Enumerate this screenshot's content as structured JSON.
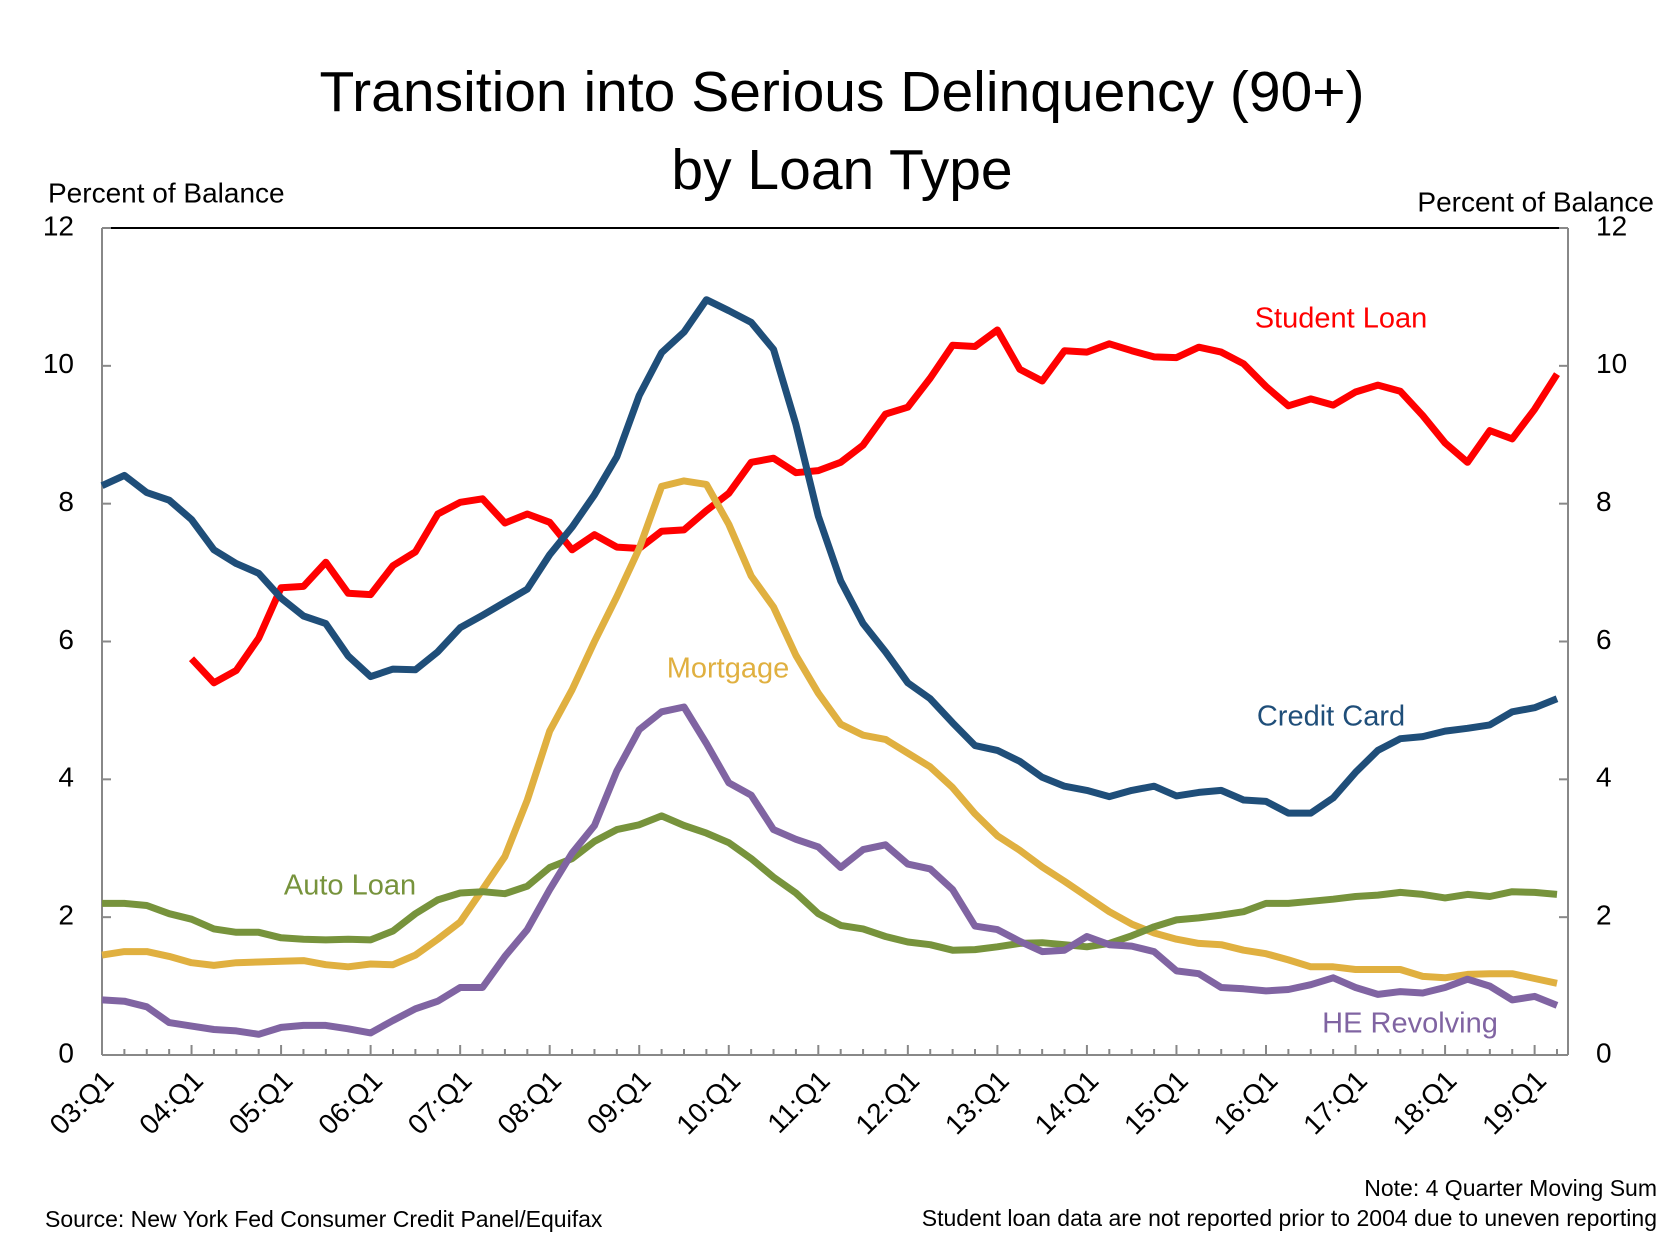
{
  "chart_data": {
    "type": "line",
    "title": "Transition into Serious Delinquency (90+)",
    "subtitle": "by Loan Type",
    "y_axis_label": "Percent of Balance",
    "y2_axis_label": "Percent of Balance",
    "source": "Source: New York Fed Consumer Credit Panel/Equifax",
    "notes": [
      "Note: 4 Quarter Moving Sum",
      "Student loan data are not reported prior to 2004 due to uneven reporting"
    ],
    "categories": [
      "03:Q1",
      null,
      null,
      null,
      "04:Q1",
      null,
      null,
      null,
      "05:Q1",
      null,
      null,
      null,
      "06:Q1",
      null,
      null,
      null,
      "07:Q1",
      null,
      null,
      null,
      "08:Q1",
      null,
      null,
      null,
      "09:Q1",
      null,
      null,
      null,
      "10:Q1",
      null,
      null,
      null,
      "11:Q1",
      null,
      null,
      null,
      "12:Q1",
      null,
      null,
      null,
      "13:Q1",
      null,
      null,
      null,
      "14:Q1",
      null,
      null,
      null,
      "15:Q1",
      null,
      null,
      null,
      "16:Q1",
      null,
      null,
      null,
      "17:Q1",
      null,
      null,
      null,
      "18:Q1",
      null,
      null,
      null,
      "19:Q1",
      null
    ],
    "ylim": [
      0,
      12
    ],
    "yticks": [
      0,
      2,
      4,
      6,
      8,
      10,
      12
    ],
    "y2lim": [
      0,
      12
    ],
    "y2ticks": [
      0,
      2,
      4,
      6,
      8,
      10,
      12
    ],
    "grid": false,
    "series": [
      {
        "name": "Student Loan",
        "color": "#ff0000",
        "values": [
          null,
          null,
          null,
          null,
          5.75,
          5.4,
          5.58,
          6.05,
          6.78,
          6.8,
          7.15,
          6.7,
          6.68,
          7.1,
          7.3,
          7.85,
          8.02,
          8.07,
          7.72,
          7.85,
          7.73,
          7.33,
          7.55,
          7.37,
          7.35,
          7.6,
          7.62,
          7.9,
          8.15,
          8.6,
          8.66,
          8.45,
          8.48,
          8.6,
          8.85,
          9.3,
          9.4,
          9.82,
          10.3,
          10.28,
          10.52,
          9.95,
          9.78,
          10.22,
          10.2,
          10.32,
          10.22,
          10.13,
          10.12,
          10.27,
          10.2,
          10.03,
          9.7,
          9.42,
          9.52,
          9.43,
          9.62,
          9.72,
          9.63,
          9.28,
          8.88,
          8.6,
          9.06,
          8.94,
          9.37,
          9.88
        ]
      },
      {
        "name": "Credit Card",
        "color": "#1f4e79",
        "values": [
          8.26,
          8.41,
          8.16,
          8.05,
          7.77,
          7.33,
          7.13,
          6.99,
          6.63,
          6.37,
          6.26,
          5.79,
          5.49,
          5.6,
          5.59,
          5.85,
          6.2,
          6.38,
          6.57,
          6.76,
          7.26,
          7.66,
          8.13,
          8.68,
          9.57,
          10.19,
          10.49,
          10.96,
          10.8,
          10.63,
          10.24,
          9.15,
          7.82,
          6.88,
          6.26,
          5.85,
          5.4,
          5.17,
          4.82,
          4.49,
          4.42,
          4.26,
          4.03,
          3.9,
          3.84,
          3.75,
          3.84,
          3.9,
          3.76,
          3.81,
          3.84,
          3.7,
          3.68,
          3.51,
          3.51,
          3.73,
          4.1,
          4.42,
          4.59,
          4.62,
          4.7,
          4.74,
          4.79,
          4.98,
          5.04,
          5.17
        ]
      },
      {
        "name": "Mortgage",
        "color": "#e0b040",
        "values": [
          1.45,
          1.5,
          1.5,
          1.43,
          1.34,
          1.3,
          1.34,
          1.35,
          1.36,
          1.37,
          1.31,
          1.28,
          1.32,
          1.31,
          1.45,
          1.68,
          1.93,
          2.4,
          2.88,
          3.7,
          4.7,
          5.3,
          6.0,
          6.65,
          7.35,
          8.25,
          8.33,
          8.28,
          7.7,
          6.95,
          6.5,
          5.8,
          5.25,
          4.8,
          4.64,
          4.58,
          4.38,
          4.18,
          3.88,
          3.5,
          3.18,
          2.97,
          2.73,
          2.52,
          2.3,
          2.08,
          1.9,
          1.77,
          1.68,
          1.62,
          1.6,
          1.52,
          1.47,
          1.38,
          1.28,
          1.28,
          1.24,
          1.24,
          1.24,
          1.14,
          1.12,
          1.17,
          1.18,
          1.18,
          1.11,
          1.04
        ]
      },
      {
        "name": "Auto Loan",
        "color": "#77933c",
        "values": [
          2.2,
          2.2,
          2.17,
          2.05,
          1.97,
          1.83,
          1.78,
          1.78,
          1.7,
          1.68,
          1.67,
          1.68,
          1.67,
          1.8,
          2.05,
          2.25,
          2.35,
          2.37,
          2.34,
          2.45,
          2.72,
          2.85,
          3.1,
          3.27,
          3.34,
          3.47,
          3.33,
          3.22,
          3.08,
          2.85,
          2.58,
          2.35,
          2.05,
          1.88,
          1.83,
          1.72,
          1.64,
          1.6,
          1.52,
          1.53,
          1.57,
          1.62,
          1.63,
          1.6,
          1.57,
          1.62,
          1.73,
          1.86,
          1.96,
          1.99,
          2.03,
          2.08,
          2.2,
          2.2,
          2.23,
          2.26,
          2.3,
          2.32,
          2.36,
          2.33,
          2.28,
          2.33,
          2.3,
          2.37,
          2.36,
          2.33
        ]
      },
      {
        "name": "HE Revolving",
        "color": "#8064a2",
        "values": [
          0.8,
          0.78,
          0.7,
          0.47,
          0.42,
          0.37,
          0.35,
          0.3,
          0.4,
          0.43,
          0.43,
          0.38,
          0.32,
          0.5,
          0.67,
          0.78,
          0.98,
          0.98,
          1.43,
          1.82,
          2.4,
          2.93,
          3.33,
          4.12,
          4.72,
          4.98,
          5.05,
          4.52,
          3.95,
          3.77,
          3.27,
          3.13,
          3.02,
          2.72,
          2.98,
          3.05,
          2.77,
          2.7,
          2.4,
          1.87,
          1.82,
          1.65,
          1.5,
          1.52,
          1.72,
          1.6,
          1.58,
          1.5,
          1.22,
          1.18,
          0.98,
          0.96,
          0.93,
          0.95,
          1.02,
          1.12,
          0.98,
          0.88,
          0.92,
          0.9,
          0.98,
          1.1,
          1.0,
          0.8,
          0.85,
          0.72
        ]
      }
    ]
  }
}
